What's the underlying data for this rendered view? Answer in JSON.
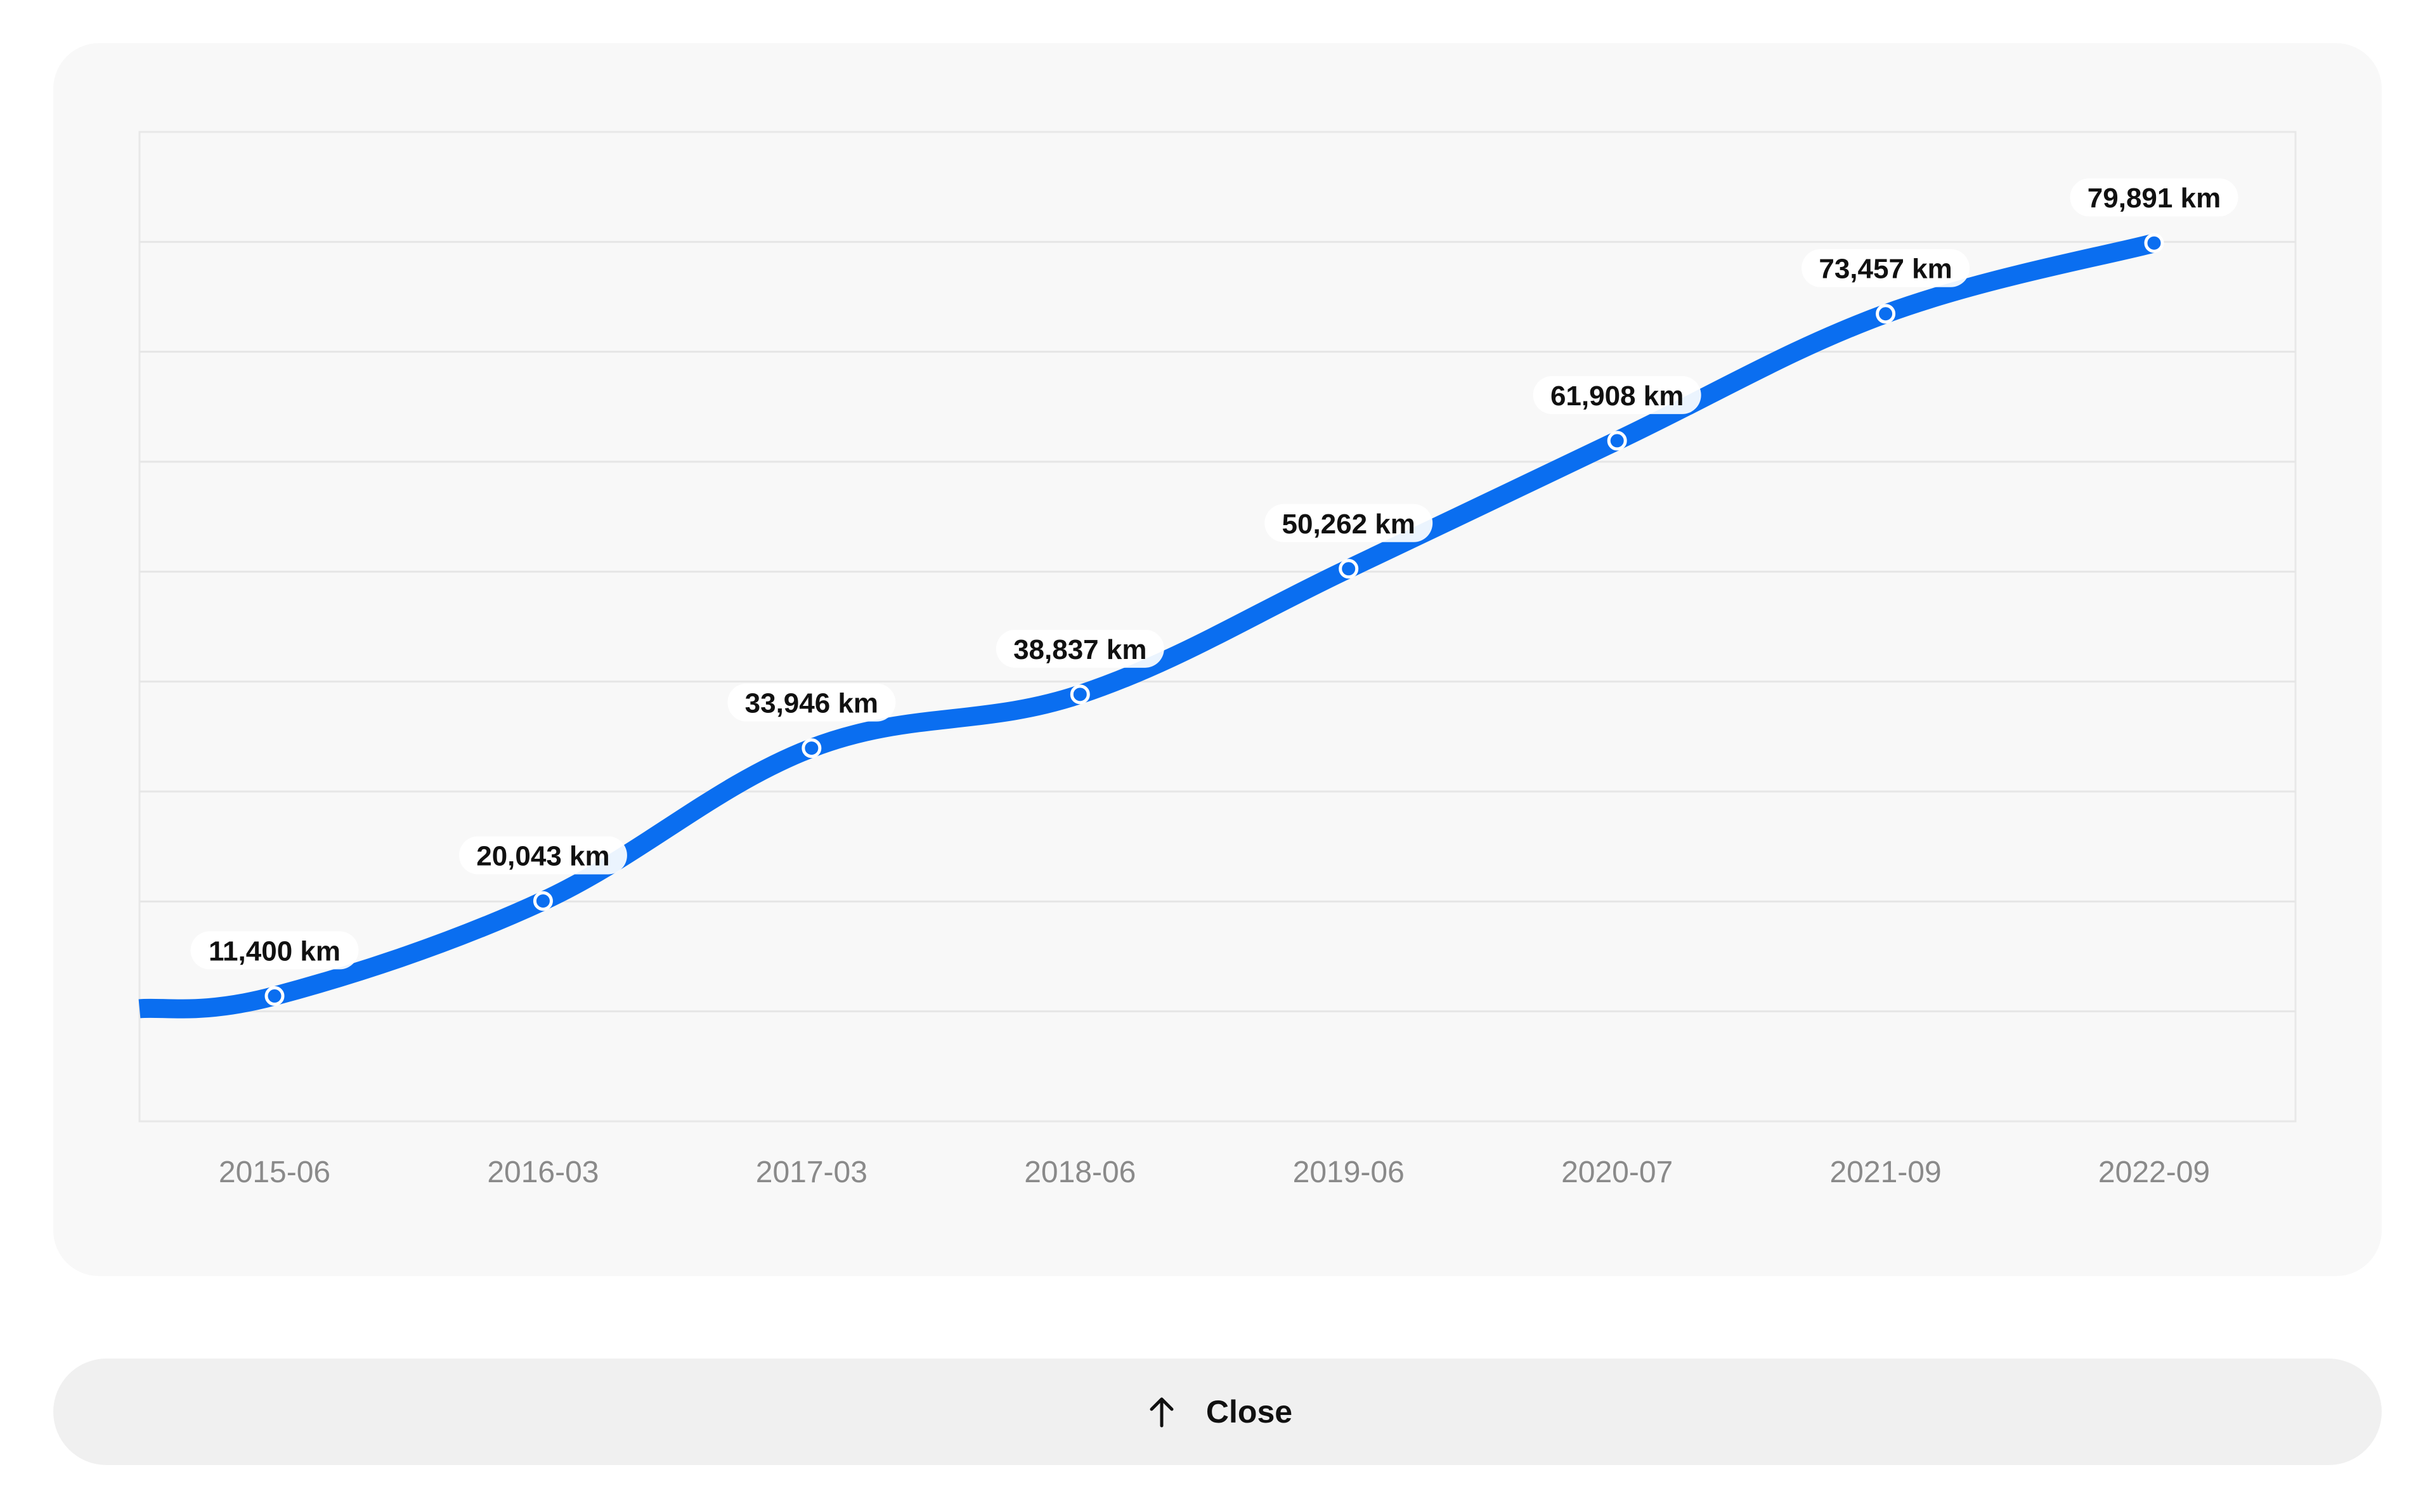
{
  "chart_data": {
    "type": "line",
    "categories": [
      "2015-06",
      "2016-03",
      "2017-03",
      "2018-06",
      "2019-06",
      "2020-07",
      "2021-09",
      "2022-09"
    ],
    "series": [
      {
        "values": [
          11400,
          20043,
          33946,
          38837,
          50262,
          61908,
          73457,
          79891
        ],
        "data_labels": [
          "11,400 km",
          "20,043 km",
          "33,946 km",
          "38,837 km",
          "50,262 km",
          "61,908 km",
          "73,457 km",
          "79,891 km"
        ]
      }
    ],
    "unit": "km",
    "ylim": [
      0,
      90000
    ],
    "grid": true,
    "line_color": "#0a6ef0",
    "xlabel": "",
    "ylabel": ""
  },
  "footer": {
    "close_label": "Close",
    "close_icon": "arrow-up-icon"
  }
}
